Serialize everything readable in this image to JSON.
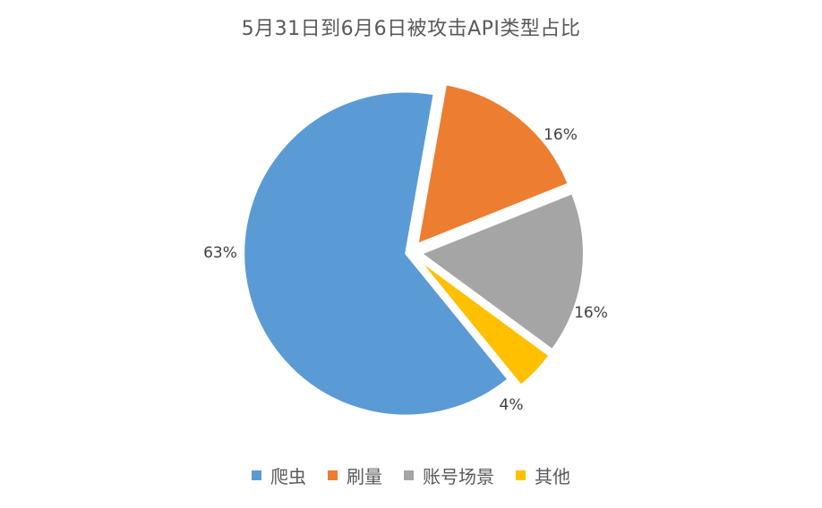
{
  "chart_data": {
    "type": "pie",
    "title": "5月31日到6月6日被攻击API类型占比",
    "categories": [
      "爬虫",
      "刷量",
      "账号场景",
      "其他"
    ],
    "values": [
      63,
      16,
      16,
      4
    ],
    "data_labels": [
      "63%",
      "16%",
      "16%",
      "4%"
    ],
    "colors": [
      "#5B9BD5",
      "#ED7D31",
      "#A5A5A5",
      "#FFC000"
    ],
    "legend_position": "bottom",
    "exploded": true
  }
}
